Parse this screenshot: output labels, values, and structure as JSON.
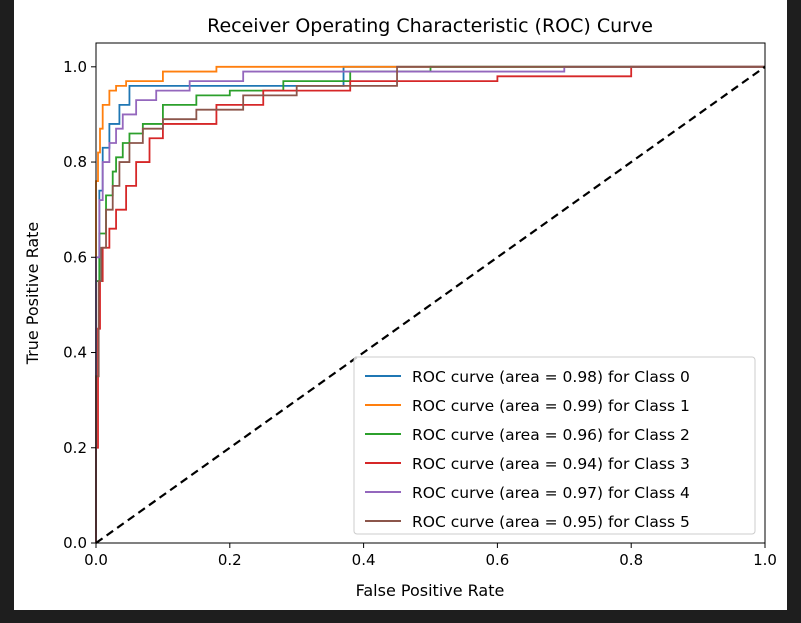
{
  "chart_data": {
    "type": "line",
    "title": "Receiver Operating Characteristic (ROC) Curve",
    "xlabel": "False Positive Rate",
    "ylabel": "True Positive Rate",
    "xlim": [
      0.0,
      1.0
    ],
    "ylim": [
      0.0,
      1.05
    ],
    "xticks": [
      0.0,
      0.2,
      0.4,
      0.6,
      0.8,
      1.0
    ],
    "xtick_labels": [
      "0.0",
      "0.2",
      "0.4",
      "0.6",
      "0.8",
      "1.0"
    ],
    "yticks": [
      0.0,
      0.2,
      0.4,
      0.6,
      0.8,
      1.0
    ],
    "ytick_labels": [
      "0.0",
      "0.2",
      "0.4",
      "0.6",
      "0.8",
      "1.0"
    ],
    "grid": false,
    "legend_position": "lower right",
    "series": [
      {
        "name": "ROC curve (area = 0.98) for Class 0",
        "color": "#1f77b4",
        "x": [
          0.0,
          0.0,
          0.005,
          0.005,
          0.01,
          0.01,
          0.02,
          0.02,
          0.035,
          0.035,
          0.05,
          0.05,
          0.07,
          0.07,
          0.37,
          0.37,
          0.41,
          0.41,
          1.0
        ],
        "y": [
          0.0,
          0.55,
          0.55,
          0.74,
          0.74,
          0.83,
          0.83,
          0.88,
          0.88,
          0.92,
          0.92,
          0.96,
          0.96,
          0.96,
          0.96,
          1.0,
          1.0,
          1.0,
          1.0
        ]
      },
      {
        "name": "ROC curve (area = 0.99) for Class 1",
        "color": "#ff7f0e",
        "x": [
          0.0,
          0.0,
          0.003,
          0.003,
          0.006,
          0.006,
          0.01,
          0.01,
          0.02,
          0.02,
          0.03,
          0.03,
          0.045,
          0.045,
          0.1,
          0.1,
          0.18,
          0.18,
          1.0
        ],
        "y": [
          0.0,
          0.76,
          0.76,
          0.82,
          0.82,
          0.87,
          0.87,
          0.92,
          0.92,
          0.95,
          0.95,
          0.96,
          0.96,
          0.97,
          0.97,
          0.99,
          0.99,
          1.0,
          1.0
        ]
      },
      {
        "name": "ROC curve (area = 0.96) for Class 2",
        "color": "#2ca02c",
        "x": [
          0.0,
          0.0,
          0.005,
          0.005,
          0.015,
          0.015,
          0.025,
          0.025,
          0.03,
          0.03,
          0.04,
          0.04,
          0.05,
          0.05,
          0.07,
          0.07,
          0.1,
          0.1,
          0.15,
          0.15,
          0.2,
          0.2,
          0.28,
          0.28,
          0.38,
          0.38,
          0.5,
          0.5,
          1.0
        ],
        "y": [
          0.0,
          0.55,
          0.55,
          0.65,
          0.65,
          0.73,
          0.73,
          0.78,
          0.78,
          0.81,
          0.81,
          0.84,
          0.84,
          0.86,
          0.86,
          0.88,
          0.88,
          0.92,
          0.92,
          0.94,
          0.94,
          0.95,
          0.95,
          0.97,
          0.97,
          0.99,
          0.99,
          1.0,
          1.0
        ]
      },
      {
        "name": "ROC curve (area = 0.94) for Class 3",
        "color": "#d62728",
        "x": [
          0.0,
          0.0,
          0.003,
          0.003,
          0.006,
          0.006,
          0.01,
          0.01,
          0.02,
          0.02,
          0.03,
          0.03,
          0.045,
          0.045,
          0.06,
          0.06,
          0.08,
          0.08,
          0.1,
          0.1,
          0.18,
          0.18,
          0.25,
          0.25,
          0.38,
          0.38,
          0.6,
          0.6,
          0.8,
          0.8,
          1.0
        ],
        "y": [
          0.0,
          0.2,
          0.2,
          0.45,
          0.45,
          0.55,
          0.55,
          0.62,
          0.62,
          0.66,
          0.66,
          0.7,
          0.7,
          0.75,
          0.75,
          0.8,
          0.8,
          0.85,
          0.85,
          0.88,
          0.88,
          0.92,
          0.92,
          0.95,
          0.95,
          0.97,
          0.97,
          0.98,
          0.98,
          1.0,
          1.0
        ]
      },
      {
        "name": "ROC curve (area = 0.97) for Class 4",
        "color": "#9467bd",
        "x": [
          0.0,
          0.0,
          0.005,
          0.005,
          0.01,
          0.01,
          0.02,
          0.02,
          0.03,
          0.03,
          0.04,
          0.04,
          0.06,
          0.06,
          0.09,
          0.09,
          0.14,
          0.14,
          0.22,
          0.22,
          0.7,
          0.7,
          1.0
        ],
        "y": [
          0.0,
          0.6,
          0.6,
          0.72,
          0.72,
          0.8,
          0.8,
          0.84,
          0.84,
          0.87,
          0.87,
          0.9,
          0.9,
          0.93,
          0.93,
          0.95,
          0.95,
          0.97,
          0.97,
          0.99,
          0.99,
          1.0,
          1.0
        ]
      },
      {
        "name": "ROC curve (area = 0.95) for Class 5",
        "color": "#8c564b",
        "x": [
          0.0,
          0.0,
          0.004,
          0.004,
          0.008,
          0.008,
          0.015,
          0.015,
          0.025,
          0.025,
          0.035,
          0.035,
          0.05,
          0.05,
          0.07,
          0.07,
          0.1,
          0.1,
          0.15,
          0.15,
          0.22,
          0.22,
          0.3,
          0.3,
          0.45,
          0.45,
          1.0
        ],
        "y": [
          0.0,
          0.35,
          0.35,
          0.55,
          0.55,
          0.62,
          0.62,
          0.7,
          0.7,
          0.75,
          0.75,
          0.8,
          0.8,
          0.84,
          0.84,
          0.87,
          0.87,
          0.89,
          0.89,
          0.91,
          0.91,
          0.94,
          0.94,
          0.96,
          0.96,
          1.0,
          1.0
        ]
      }
    ],
    "reference_line": {
      "color": "#000000",
      "style": "dashed",
      "x": [
        0.0,
        1.0
      ],
      "y": [
        0.0,
        1.0
      ]
    }
  }
}
